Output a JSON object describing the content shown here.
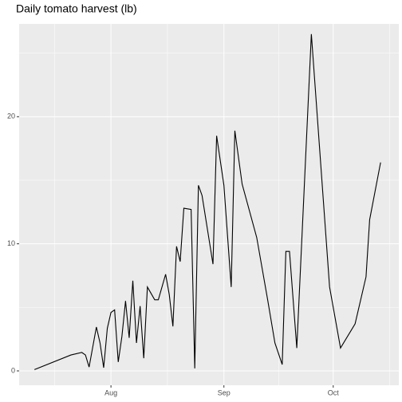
{
  "chart_data": {
    "type": "line",
    "title": "Daily tomato harvest (lb)",
    "x": [
      -21,
      -11,
      -8,
      -7,
      -6,
      -4,
      -3,
      -2,
      -1,
      0,
      1,
      2,
      3,
      4,
      5,
      6,
      7,
      8,
      9,
      10,
      12,
      13,
      15,
      16,
      17,
      18,
      19,
      20,
      22,
      23,
      24,
      25,
      28,
      29,
      31,
      33,
      34,
      36,
      40,
      43,
      45,
      47,
      48,
      49,
      50,
      51,
      55,
      60,
      63,
      67,
      70,
      71,
      74
    ],
    "values": [
      0.1,
      1.25,
      1.45,
      1.25,
      0.3,
      3.45,
      2.2,
      0.25,
      3.35,
      4.6,
      4.8,
      0.7,
      2.7,
      5.5,
      2.6,
      7.1,
      2.2,
      5.1,
      1.0,
      6.6,
      5.6,
      5.6,
      7.6,
      6.0,
      3.5,
      9.8,
      8.6,
      12.8,
      12.7,
      0.2,
      14.6,
      13.8,
      8.4,
      18.5,
      14.6,
      6.6,
      18.9,
      14.7,
      10.5,
      5.6,
      2.2,
      0.5,
      9.4,
      9.4,
      5.6,
      1.8,
      26.5,
      6.6,
      1.8,
      3.7,
      7.4,
      11.9,
      16.4
    ],
    "color": "#000000",
    "xlim": [
      -25.2,
      79
    ],
    "xticks": [
      {
        "value": 0,
        "label": "Aug"
      },
      {
        "value": 31,
        "label": "Sep"
      },
      {
        "value": 61,
        "label": "Oct"
      }
    ],
    "ylim": [
      -1.13,
      27.3
    ],
    "yticks": [
      0,
      10,
      20
    ],
    "grid": true
  }
}
